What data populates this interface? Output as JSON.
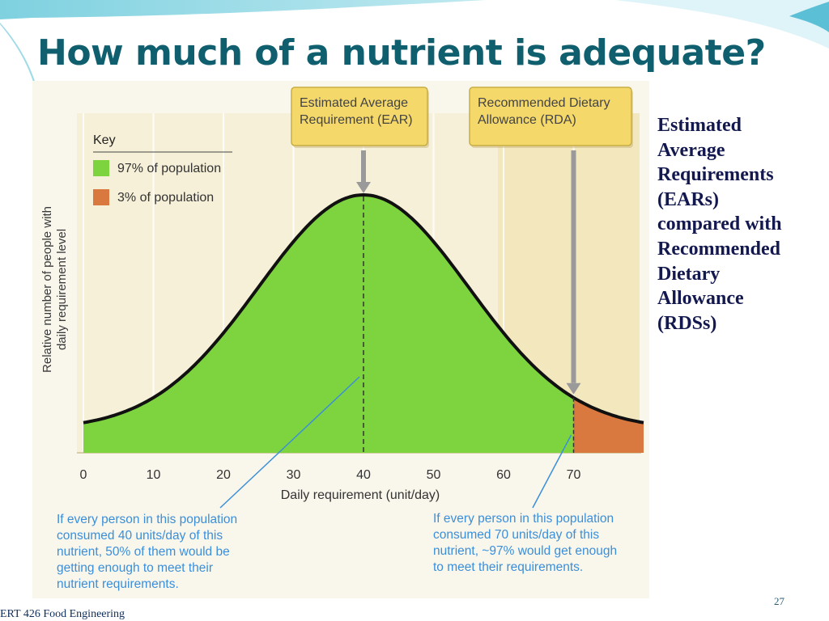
{
  "slide": {
    "title": "How much of a nutrient is adequate?",
    "side_text": [
      "Estimated",
      "Average",
      "Requirements",
      "(EARs)",
      "compared with",
      "Recommended",
      "Dietary",
      "Allowance",
      "(RDSs)"
    ],
    "slide_number": "27",
    "footer": "ERT 426 Food Engineering"
  },
  "colors": {
    "title": "#0f5f6f",
    "side_text": "#13184f",
    "majority_fill": "#7ed43e",
    "minority_fill": "#d9783f",
    "annotation_text": "#3b8fd9",
    "callout_fill": "#f4d86a"
  },
  "chart_data": {
    "type": "area",
    "xlabel": "Daily requirement (unit/day)",
    "ylabel": [
      "Relative number of people with",
      "daily requirement level"
    ],
    "xlim": [
      0,
      80
    ],
    "xticks": [
      0,
      10,
      20,
      30,
      40,
      50,
      60,
      70
    ],
    "distribution": {
      "kind": "normal",
      "mean": 40,
      "sd": 15
    },
    "markers": [
      {
        "name": "ear",
        "x": 40,
        "label": [
          "Estimated Average",
          "Requirement (EAR)"
        ]
      },
      {
        "name": "rda",
        "x": 70,
        "label": [
          "Recommended Dietary",
          "Allowance (RDA)"
        ]
      }
    ],
    "legend": {
      "title": "Key",
      "position": "top-left",
      "entries": [
        {
          "label": "97% of population",
          "color": "#7ed43e"
        },
        {
          "label": "3% of population",
          "color": "#d9783f"
        }
      ]
    },
    "annotations": [
      {
        "name": "ear-note",
        "points_to_x": 40,
        "lines": [
          "If every person in this population",
          "consumed 40 units/day of this",
          "nutrient, 50% of them would be",
          "getting enough to meet their",
          "nutrient requirements."
        ]
      },
      {
        "name": "rda-note",
        "points_to_x": 70,
        "lines": [
          "If every person in this population",
          "consumed 70 units/day of this",
          "nutrient, ~97% would get enough",
          "to meet their requirements."
        ]
      }
    ]
  }
}
